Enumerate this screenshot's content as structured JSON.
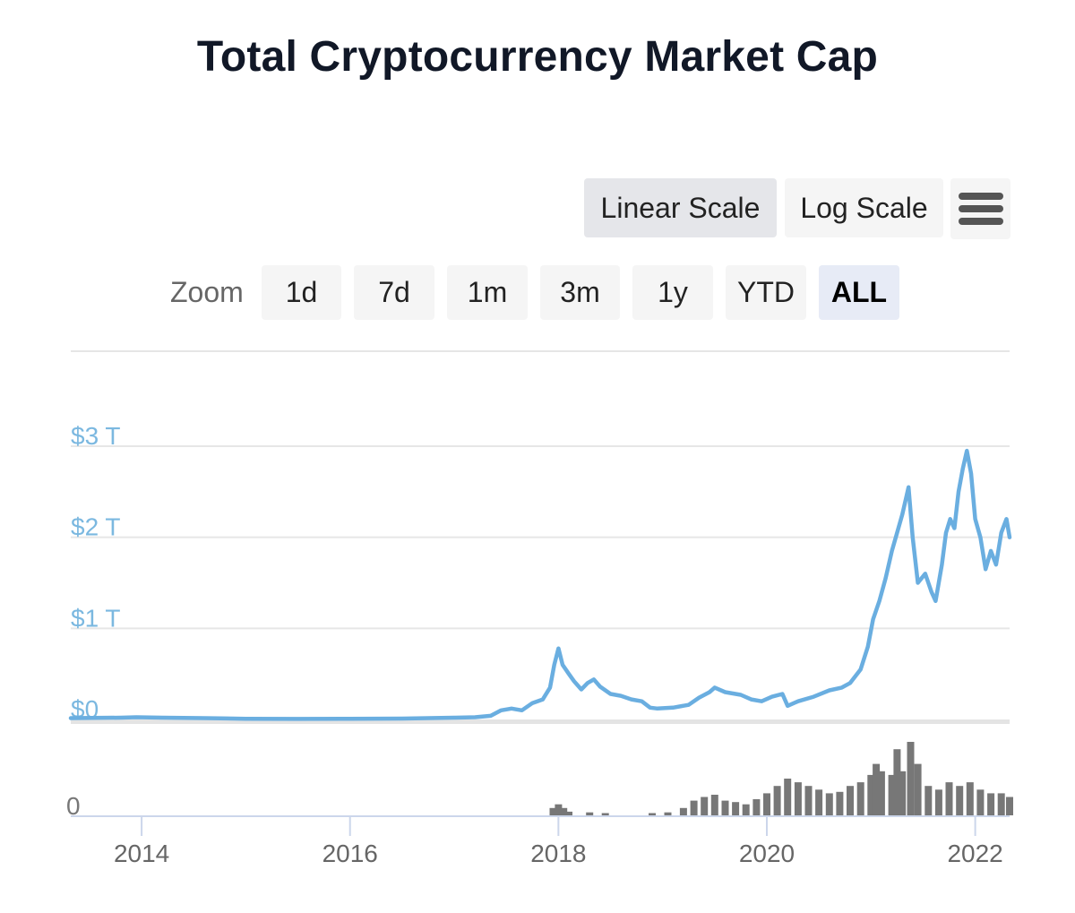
{
  "chart_data": {
    "type": "line",
    "title": "Total Cryptocurrency Market Cap",
    "controls": {
      "scale_buttons": [
        {
          "label": "Linear Scale",
          "active": true
        },
        {
          "label": "Log Scale",
          "active": false
        }
      ],
      "menu_icon": "hamburger-menu-icon",
      "zoom_label": "Zoom",
      "zoom_buttons": [
        {
          "label": "1d",
          "active": false
        },
        {
          "label": "7d",
          "active": false
        },
        {
          "label": "1m",
          "active": false
        },
        {
          "label": "3m",
          "active": false
        },
        {
          "label": "1y",
          "active": false
        },
        {
          "label": "YTD",
          "active": false
        },
        {
          "label": "ALL",
          "active": true
        }
      ]
    },
    "x_range": [
      2013.32,
      2022.33
    ],
    "x_ticks": [
      {
        "value": 2014,
        "label": "2014"
      },
      {
        "value": 2016,
        "label": "2016"
      },
      {
        "value": 2018,
        "label": "2018"
      },
      {
        "value": 2020,
        "label": "2020"
      },
      {
        "value": 2022,
        "label": "2022"
      }
    ],
    "y_range": [
      0,
      3
    ],
    "y_unit": "trillion USD",
    "y_ticks": [
      {
        "value": 0,
        "label": "$0"
      },
      {
        "value": 1,
        "label": "$1 T"
      },
      {
        "value": 2,
        "label": "$2 T"
      },
      {
        "value": 3,
        "label": "$3 T"
      }
    ],
    "volume_tick_label": "0",
    "colors": {
      "line": "#6aaee0",
      "axis_label": "#7bb8e0",
      "volume": "#777777",
      "grid": "#e6e6e6",
      "active_zoom": "#e7ebf6",
      "active_scale": "#e5e6ea"
    },
    "series": [
      {
        "type": "line",
        "points": [
          [
            2013.32,
            0.015
          ],
          [
            2013.8,
            0.02
          ],
          [
            2013.95,
            0.025
          ],
          [
            2014.2,
            0.02
          ],
          [
            2014.6,
            0.015
          ],
          [
            2015.0,
            0.008
          ],
          [
            2015.5,
            0.006
          ],
          [
            2016.0,
            0.008
          ],
          [
            2016.5,
            0.01
          ],
          [
            2017.0,
            0.02
          ],
          [
            2017.2,
            0.025
          ],
          [
            2017.35,
            0.04
          ],
          [
            2017.45,
            0.1
          ],
          [
            2017.55,
            0.12
          ],
          [
            2017.65,
            0.1
          ],
          [
            2017.75,
            0.18
          ],
          [
            2017.85,
            0.22
          ],
          [
            2017.92,
            0.35
          ],
          [
            2017.96,
            0.6
          ],
          [
            2018.0,
            0.78
          ],
          [
            2018.04,
            0.6
          ],
          [
            2018.1,
            0.5
          ],
          [
            2018.15,
            0.42
          ],
          [
            2018.22,
            0.33
          ],
          [
            2018.28,
            0.4
          ],
          [
            2018.34,
            0.44
          ],
          [
            2018.4,
            0.36
          ],
          [
            2018.5,
            0.28
          ],
          [
            2018.6,
            0.26
          ],
          [
            2018.7,
            0.22
          ],
          [
            2018.8,
            0.2
          ],
          [
            2018.88,
            0.13
          ],
          [
            2018.95,
            0.12
          ],
          [
            2019.1,
            0.13
          ],
          [
            2019.25,
            0.16
          ],
          [
            2019.35,
            0.24
          ],
          [
            2019.45,
            0.3
          ],
          [
            2019.5,
            0.35
          ],
          [
            2019.6,
            0.3
          ],
          [
            2019.75,
            0.27
          ],
          [
            2019.85,
            0.22
          ],
          [
            2019.95,
            0.2
          ],
          [
            2020.05,
            0.25
          ],
          [
            2020.15,
            0.28
          ],
          [
            2020.2,
            0.15
          ],
          [
            2020.3,
            0.2
          ],
          [
            2020.45,
            0.25
          ],
          [
            2020.6,
            0.32
          ],
          [
            2020.72,
            0.35
          ],
          [
            2020.8,
            0.4
          ],
          [
            2020.9,
            0.55
          ],
          [
            2020.97,
            0.8
          ],
          [
            2021.02,
            1.1
          ],
          [
            2021.08,
            1.3
          ],
          [
            2021.14,
            1.55
          ],
          [
            2021.2,
            1.85
          ],
          [
            2021.25,
            2.05
          ],
          [
            2021.3,
            2.25
          ],
          [
            2021.36,
            2.55
          ],
          [
            2021.4,
            2.0
          ],
          [
            2021.45,
            1.5
          ],
          [
            2021.52,
            1.6
          ],
          [
            2021.58,
            1.4
          ],
          [
            2021.62,
            1.3
          ],
          [
            2021.68,
            1.7
          ],
          [
            2021.72,
            2.05
          ],
          [
            2021.76,
            2.2
          ],
          [
            2021.8,
            2.1
          ],
          [
            2021.84,
            2.5
          ],
          [
            2021.88,
            2.75
          ],
          [
            2021.92,
            2.95
          ],
          [
            2021.96,
            2.7
          ],
          [
            2022.0,
            2.2
          ],
          [
            2022.05,
            2.0
          ],
          [
            2022.1,
            1.65
          ],
          [
            2022.15,
            1.85
          ],
          [
            2022.2,
            1.7
          ],
          [
            2022.25,
            2.05
          ],
          [
            2022.3,
            2.2
          ],
          [
            2022.33,
            2.0
          ]
        ]
      },
      {
        "type": "volume",
        "max": 1.0,
        "points": [
          [
            2017.95,
            0.1
          ],
          [
            2018.0,
            0.15
          ],
          [
            2018.05,
            0.1
          ],
          [
            2018.1,
            0.05
          ],
          [
            2018.3,
            0.04
          ],
          [
            2018.45,
            0.03
          ],
          [
            2018.9,
            0.03
          ],
          [
            2019.05,
            0.04
          ],
          [
            2019.2,
            0.1
          ],
          [
            2019.3,
            0.2
          ],
          [
            2019.4,
            0.25
          ],
          [
            2019.5,
            0.28
          ],
          [
            2019.6,
            0.2
          ],
          [
            2019.7,
            0.18
          ],
          [
            2019.8,
            0.15
          ],
          [
            2019.9,
            0.22
          ],
          [
            2020.0,
            0.3
          ],
          [
            2020.1,
            0.4
          ],
          [
            2020.2,
            0.5
          ],
          [
            2020.3,
            0.45
          ],
          [
            2020.4,
            0.4
          ],
          [
            2020.5,
            0.35
          ],
          [
            2020.6,
            0.3
          ],
          [
            2020.7,
            0.32
          ],
          [
            2020.8,
            0.4
          ],
          [
            2020.9,
            0.45
          ],
          [
            2021.0,
            0.55
          ],
          [
            2021.05,
            0.7
          ],
          [
            2021.1,
            0.6
          ],
          [
            2021.2,
            0.55
          ],
          [
            2021.25,
            0.9
          ],
          [
            2021.3,
            0.6
          ],
          [
            2021.38,
            1.0
          ],
          [
            2021.45,
            0.7
          ],
          [
            2021.55,
            0.4
          ],
          [
            2021.65,
            0.35
          ],
          [
            2021.75,
            0.45
          ],
          [
            2021.85,
            0.4
          ],
          [
            2021.95,
            0.45
          ],
          [
            2022.05,
            0.35
          ],
          [
            2022.15,
            0.3
          ],
          [
            2022.25,
            0.3
          ],
          [
            2022.33,
            0.25
          ]
        ]
      }
    ]
  }
}
